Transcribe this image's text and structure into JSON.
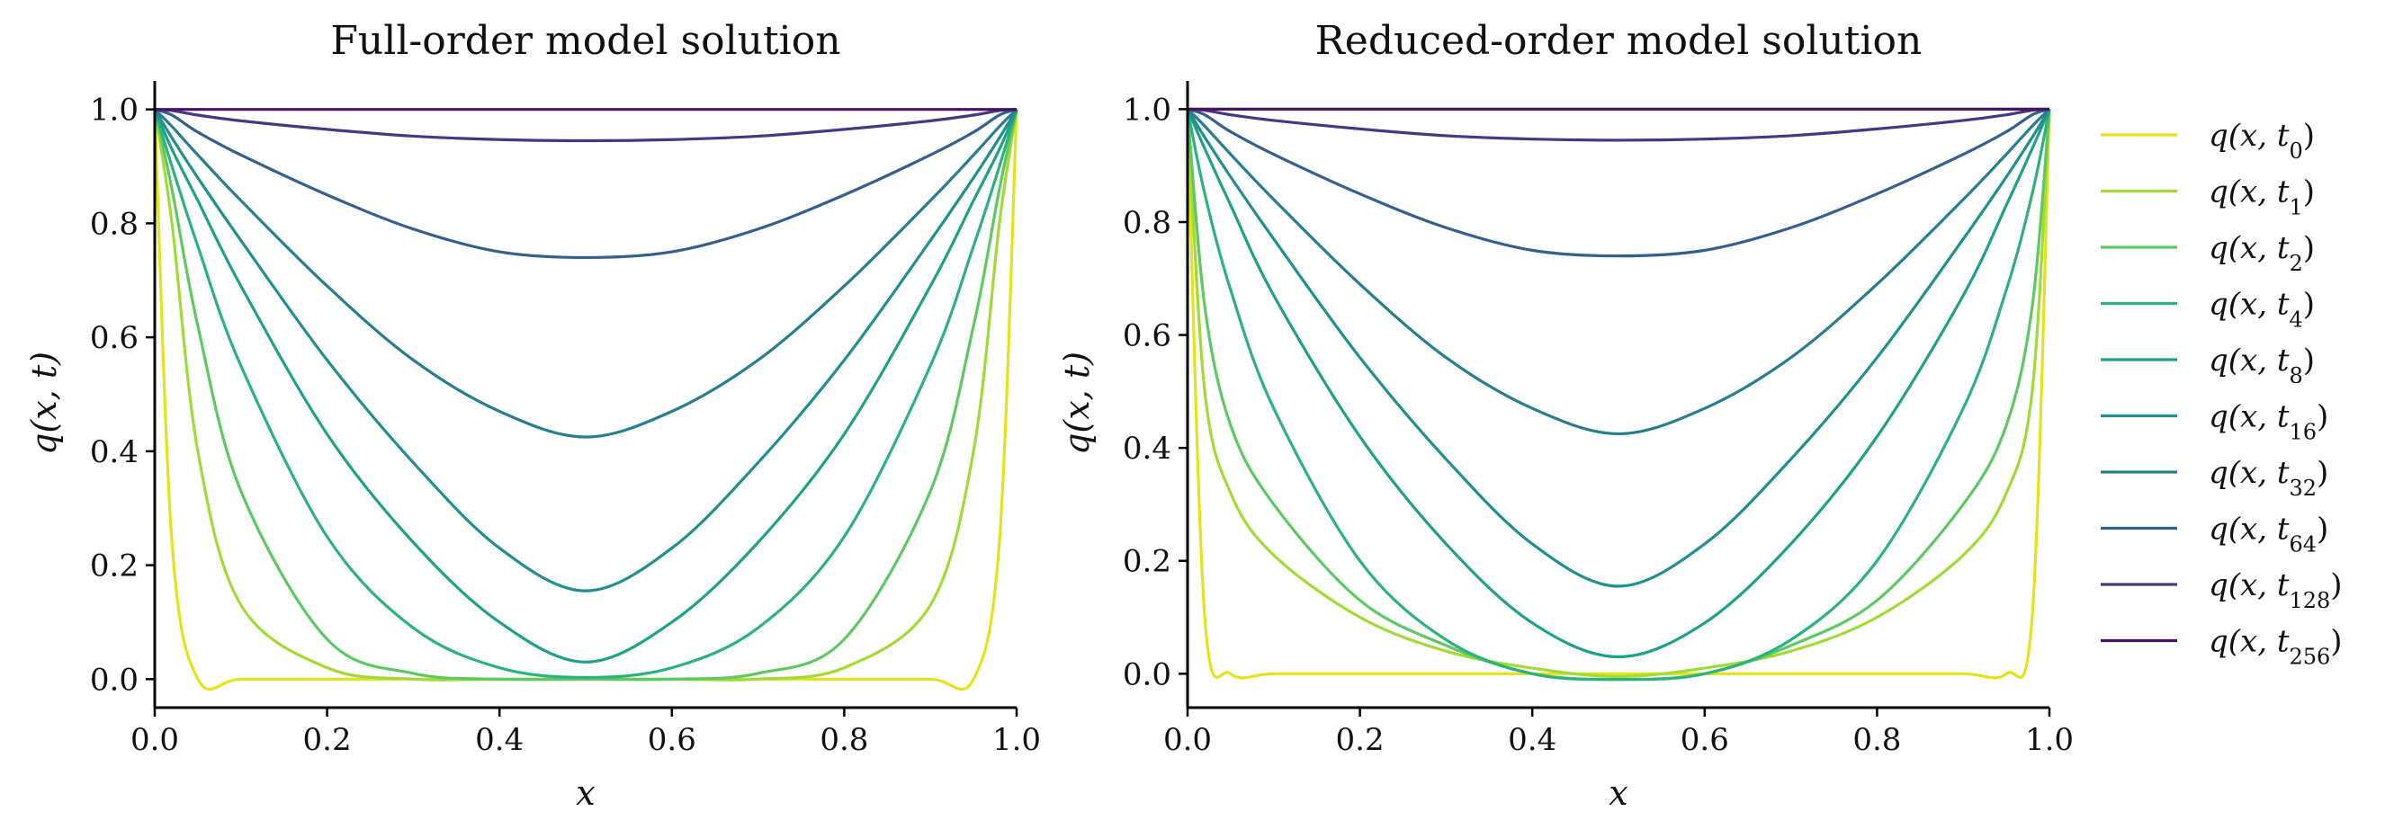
{
  "chart_data": [
    {
      "type": "line",
      "title": "Full-order model solution",
      "xlabel": "x",
      "ylabel": "q(x, t)",
      "xlim": [
        0.0,
        1.0
      ],
      "ylim": [
        -0.05,
        1.05
      ],
      "xticks": [
        "0.0",
        "0.2",
        "0.4",
        "0.6",
        "0.8",
        "1.0"
      ],
      "yticks": [
        "0.0",
        "0.2",
        "0.4",
        "0.6",
        "0.8",
        "1.0"
      ],
      "grid": false,
      "x": [
        0.0,
        0.02,
        0.05,
        0.1,
        0.2,
        0.3,
        0.4,
        0.5,
        0.6,
        0.7,
        0.8,
        0.9,
        0.95,
        0.98,
        1.0
      ],
      "series": [
        {
          "name": "q(x, t0)",
          "color": "#e3e418",
          "values": [
            1.0,
            0.24,
            0.0,
            0.0,
            0.0,
            0.0,
            0.0,
            0.0,
            0.0,
            0.0,
            0.0,
            0.0,
            0.0,
            0.24,
            1.0
          ]
        },
        {
          "name": "q(x, t1)",
          "color": "#a2da37",
          "values": [
            1.0,
            0.8,
            0.4,
            0.13,
            0.02,
            0.0,
            0.0,
            0.0,
            0.0,
            0.0,
            0.02,
            0.13,
            0.4,
            0.8,
            1.0
          ]
        },
        {
          "name": "q(x, t2)",
          "color": "#5ec962",
          "values": [
            1.0,
            0.86,
            0.62,
            0.33,
            0.07,
            0.01,
            0.0,
            0.0,
            0.0,
            0.01,
            0.07,
            0.33,
            0.62,
            0.86,
            1.0
          ]
        },
        {
          "name": "q(x, t4)",
          "color": "#2db27d",
          "values": [
            1.0,
            0.9,
            0.76,
            0.55,
            0.25,
            0.09,
            0.02,
            0.003,
            0.02,
            0.09,
            0.25,
            0.55,
            0.76,
            0.9,
            1.0
          ]
        },
        {
          "name": "q(x, t8)",
          "color": "#1fa187",
          "values": [
            1.0,
            0.93,
            0.84,
            0.69,
            0.43,
            0.24,
            0.1,
            0.03,
            0.1,
            0.24,
            0.43,
            0.69,
            0.84,
            0.93,
            1.0
          ]
        },
        {
          "name": "q(x, t16)",
          "color": "#21908d",
          "values": [
            1.0,
            0.95,
            0.88,
            0.77,
            0.56,
            0.38,
            0.23,
            0.155,
            0.23,
            0.38,
            0.56,
            0.77,
            0.88,
            0.95,
            1.0
          ]
        },
        {
          "name": "q(x, t32)",
          "color": "#287d8e",
          "values": [
            1.0,
            0.97,
            0.92,
            0.84,
            0.69,
            0.56,
            0.47,
            0.425,
            0.47,
            0.56,
            0.69,
            0.84,
            0.92,
            0.97,
            1.0
          ]
        },
        {
          "name": "q(x, t64)",
          "color": "#355f8d",
          "values": [
            1.0,
            0.99,
            0.96,
            0.92,
            0.85,
            0.79,
            0.75,
            0.74,
            0.75,
            0.79,
            0.85,
            0.92,
            0.96,
            0.99,
            1.0
          ]
        },
        {
          "name": "q(x, t128)",
          "color": "#443983",
          "values": [
            1.0,
            0.998,
            0.99,
            0.98,
            0.965,
            0.953,
            0.947,
            0.945,
            0.947,
            0.953,
            0.965,
            0.98,
            0.99,
            0.998,
            1.0
          ]
        },
        {
          "name": "q(x, t256)",
          "color": "#471365",
          "values": [
            1.0,
            1.0,
            1.0,
            1.0,
            1.0,
            1.0,
            1.0,
            1.0,
            1.0,
            1.0,
            1.0,
            1.0,
            1.0,
            1.0,
            1.0
          ]
        }
      ]
    },
    {
      "type": "line",
      "title": "Reduced-order model solution",
      "xlabel": "x",
      "ylabel": "q(x, t)",
      "xlim": [
        0.0,
        1.0
      ],
      "ylim": [
        -0.06,
        1.05
      ],
      "xticks": [
        "0.0",
        "0.2",
        "0.4",
        "0.6",
        "0.8",
        "1.0"
      ],
      "yticks": [
        "0.0",
        "0.2",
        "0.4",
        "0.6",
        "0.8",
        "1.0"
      ],
      "grid": false,
      "x": [
        0.0,
        0.02,
        0.05,
        0.1,
        0.2,
        0.3,
        0.4,
        0.5,
        0.6,
        0.7,
        0.8,
        0.9,
        0.95,
        0.98,
        1.0
      ],
      "series": [
        {
          "name": "q(x, t0)",
          "color": "#e3e418",
          "values": [
            1.0,
            0.1,
            0.0,
            0.0,
            0.0,
            0.0,
            0.0,
            0.0,
            0.0,
            0.0,
            0.0,
            0.0,
            0.0,
            0.1,
            1.0
          ]
        },
        {
          "name": "q(x, t1)",
          "color": "#a2da37",
          "values": [
            1.0,
            0.5,
            0.32,
            0.21,
            0.1,
            0.04,
            0.01,
            -0.005,
            0.01,
            0.04,
            0.1,
            0.21,
            0.32,
            0.5,
            1.0
          ]
        },
        {
          "name": "q(x, t2)",
          "color": "#5ec962",
          "values": [
            1.0,
            0.65,
            0.44,
            0.3,
            0.13,
            0.05,
            0.0,
            -0.01,
            0.0,
            0.05,
            0.13,
            0.3,
            0.44,
            0.65,
            1.0
          ]
        },
        {
          "name": "q(x, t4)",
          "color": "#2db27d",
          "values": [
            1.0,
            0.85,
            0.68,
            0.47,
            0.2,
            0.06,
            0.0,
            -0.01,
            0.0,
            0.06,
            0.2,
            0.47,
            0.68,
            0.85,
            1.0
          ]
        },
        {
          "name": "q(x, t8)",
          "color": "#1fa187",
          "values": [
            1.0,
            0.93,
            0.83,
            0.67,
            0.42,
            0.23,
            0.09,
            0.03,
            0.09,
            0.23,
            0.42,
            0.67,
            0.83,
            0.93,
            1.0
          ]
        },
        {
          "name": "q(x, t16)",
          "color": "#21908d",
          "values": [
            1.0,
            0.95,
            0.88,
            0.77,
            0.56,
            0.38,
            0.23,
            0.155,
            0.23,
            0.38,
            0.56,
            0.77,
            0.88,
            0.95,
            1.0
          ]
        },
        {
          "name": "q(x, t32)",
          "color": "#287d8e",
          "values": [
            1.0,
            0.97,
            0.92,
            0.84,
            0.69,
            0.56,
            0.47,
            0.425,
            0.47,
            0.56,
            0.69,
            0.84,
            0.92,
            0.97,
            1.0
          ]
        },
        {
          "name": "q(x, t64)",
          "color": "#355f8d",
          "values": [
            1.0,
            0.99,
            0.96,
            0.92,
            0.85,
            0.79,
            0.75,
            0.74,
            0.75,
            0.79,
            0.85,
            0.92,
            0.96,
            0.99,
            1.0
          ]
        },
        {
          "name": "q(x, t128)",
          "color": "#443983",
          "values": [
            1.0,
            0.998,
            0.99,
            0.98,
            0.965,
            0.953,
            0.947,
            0.945,
            0.947,
            0.953,
            0.965,
            0.98,
            0.99,
            0.998,
            1.0
          ]
        },
        {
          "name": "q(x, t256)",
          "color": "#471365",
          "values": [
            1.0,
            1.0,
            1.0,
            1.0,
            1.0,
            1.0,
            1.0,
            1.0,
            1.0,
            1.0,
            1.0,
            1.0,
            1.0,
            1.0,
            1.0
          ]
        }
      ]
    }
  ],
  "legend": {
    "placement": "right",
    "entries": [
      {
        "base": "q(x, t",
        "sub": "0",
        "close": ")",
        "color": "#e3e418"
      },
      {
        "base": "q(x, t",
        "sub": "1",
        "close": ")",
        "color": "#a2da37"
      },
      {
        "base": "q(x, t",
        "sub": "2",
        "close": ")",
        "color": "#5ec962"
      },
      {
        "base": "q(x, t",
        "sub": "4",
        "close": ")",
        "color": "#2db27d"
      },
      {
        "base": "q(x, t",
        "sub": "8",
        "close": ")",
        "color": "#1fa187"
      },
      {
        "base": "q(x, t",
        "sub": "16",
        "close": ")",
        "color": "#21908d"
      },
      {
        "base": "q(x, t",
        "sub": "32",
        "close": ")",
        "color": "#287d8e"
      },
      {
        "base": "q(x, t",
        "sub": "64",
        "close": ")",
        "color": "#355f8d"
      },
      {
        "base": "q(x, t",
        "sub": "128",
        "close": ")",
        "color": "#443983"
      },
      {
        "base": "q(x, t",
        "sub": "256",
        "close": ")",
        "color": "#471365"
      }
    ]
  }
}
